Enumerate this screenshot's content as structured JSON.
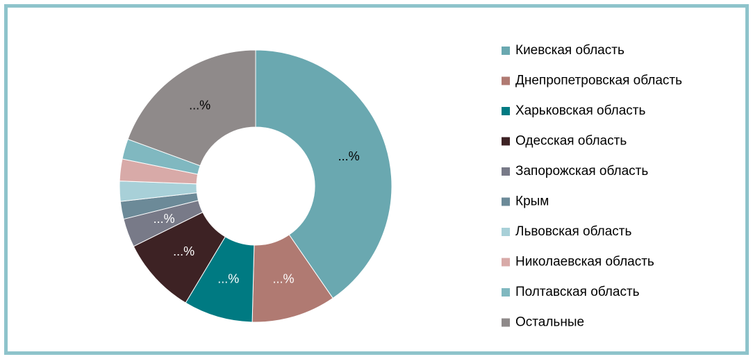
{
  "chart_data": {
    "type": "pie",
    "categories": [
      "Киевская область",
      "Днепропетровская область",
      "Харьковская область",
      "Одесская область",
      "Запорожская область",
      "Крым",
      "Львовская область",
      "Николаевская область",
      "Полтавская область",
      "Остальные"
    ],
    "values": [
      40.4,
      10,
      8.2,
      9.1,
      3.4,
      2.1,
      2.4,
      2.6,
      2.4,
      19.4
    ],
    "value_labels": [
      "...%",
      "...%",
      "...%",
      "...%",
      "...%",
      null,
      null,
      null,
      null,
      "...%"
    ],
    "colors": [
      "#6aa8b0",
      "#b07a72",
      "#007a82",
      "#3d2224",
      "#787a88",
      "#6c8a98",
      "#a8d0d8",
      "#d8aaa8",
      "#80b8c0",
      "#8f8a8a"
    ],
    "legend": "right"
  }
}
